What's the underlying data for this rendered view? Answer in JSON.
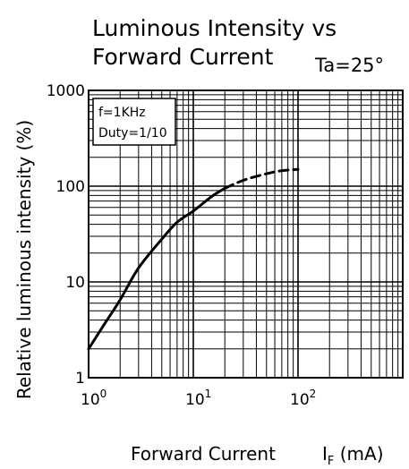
{
  "chart_data": {
    "type": "line",
    "title_line1": "Luminous Intensity vs",
    "title_line2": "Forward Current",
    "condition": "Ta=25°",
    "xlabel": "Forward Current",
    "xunit": "I_F (mA)",
    "ylabel": "Relative luminous intensity (%)",
    "x_scale": "log",
    "y_scale": "log",
    "xlim": [
      1,
      1000
    ],
    "ylim": [
      1,
      1000
    ],
    "x_ticks": [
      {
        "value": 1,
        "base": "10",
        "exp": "0"
      },
      {
        "value": 10,
        "base": "10",
        "exp": "1"
      },
      {
        "value": 100,
        "base": "10",
        "exp": "2"
      }
    ],
    "y_ticks": [
      {
        "value": 1,
        "label": "1"
      },
      {
        "value": 10,
        "label": "10"
      },
      {
        "value": 100,
        "label": "100"
      },
      {
        "value": 1000,
        "label": "1000"
      }
    ],
    "grid": true,
    "legend_position": "top-left",
    "legend_lines": [
      "f=1KHz",
      "Duty=1/10"
    ],
    "series": [
      {
        "style": "solid",
        "x": [
          1,
          1.5,
          2,
          3,
          5,
          7,
          10,
          15,
          20
        ],
        "y": [
          2,
          4,
          6.5,
          14,
          28,
          42,
          55,
          78,
          95
        ]
      },
      {
        "style": "dashed",
        "x": [
          20,
          30,
          50,
          70,
          100
        ],
        "y": [
          95,
          115,
          135,
          145,
          150
        ]
      }
    ]
  }
}
